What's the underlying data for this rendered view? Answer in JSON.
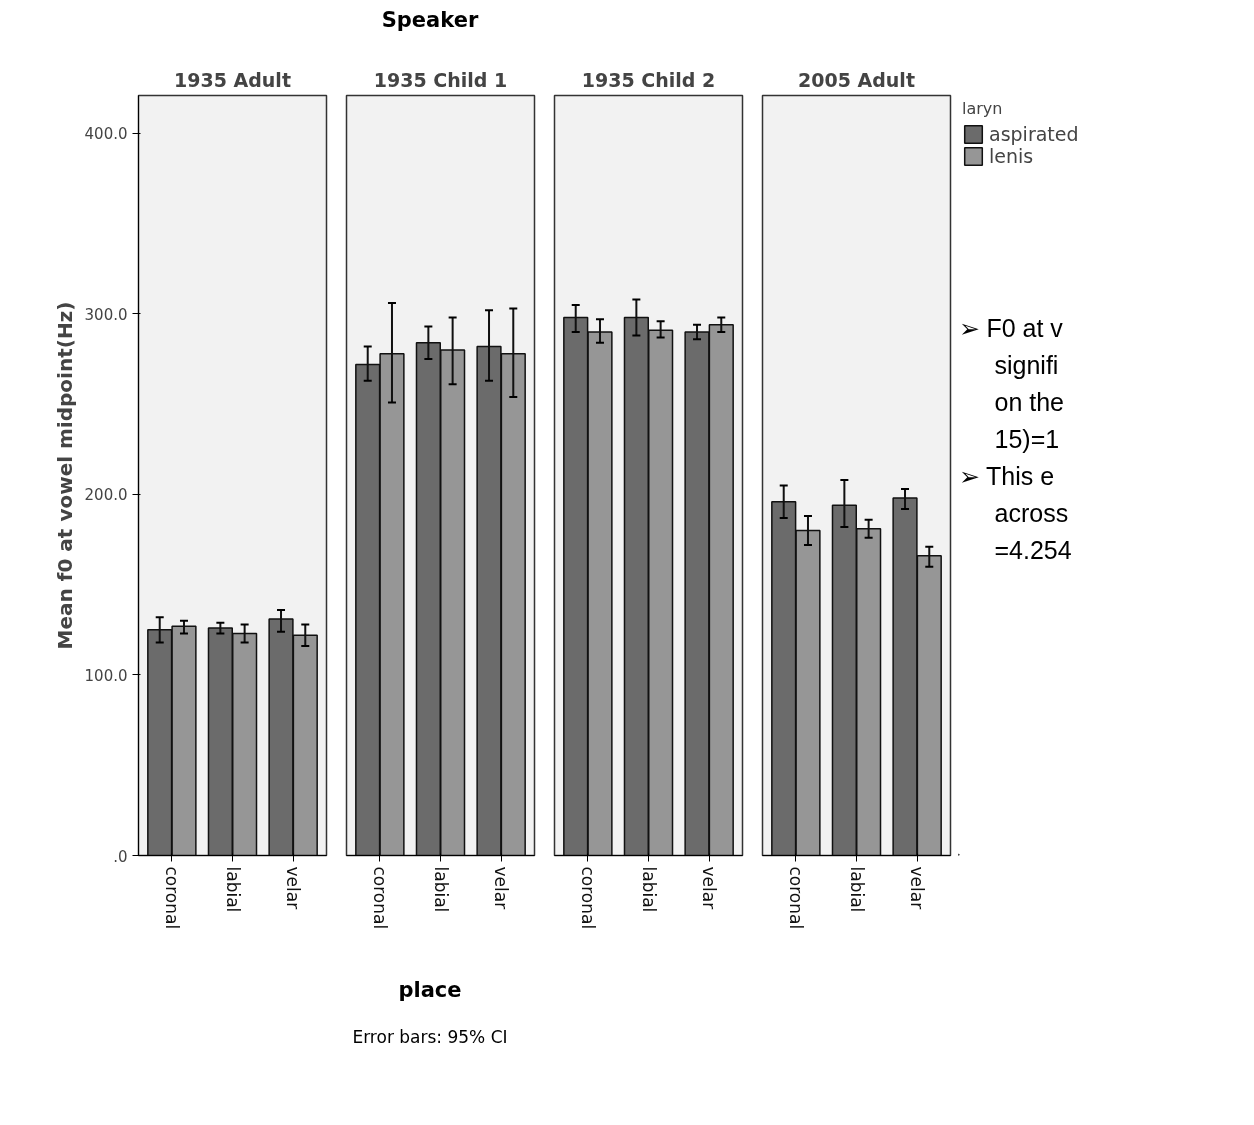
{
  "chart_data": [
    {
      "type": "bar",
      "title": "1935 Adult",
      "ylabel": "Mean f0 at vowel midpoint(Hz)",
      "xlabel": "place",
      "annotations": [
        "Speaker",
        "Error bars: 95% CI"
      ],
      "categories": [
        "coronal",
        "labial",
        "velar"
      ],
      "ylim": [
        0,
        421
      ],
      "yticks": [
        {
          "value": 0,
          "label": ".0"
        },
        {
          "value": 100,
          "label": "100.0"
        },
        {
          "value": 200,
          "label": "200.0"
        },
        {
          "value": 300,
          "label": "300.0"
        },
        {
          "value": 400,
          "label": "400.0"
        }
      ],
      "grid": false,
      "series": [
        {
          "color": "#6b6b6b",
          "values": [
            125,
            126,
            131
          ],
          "errors": [
            [
              118,
              132
            ],
            [
              123,
              129
            ],
            [
              124,
              136
            ]
          ]
        },
        {
          "color": "#969696",
          "values": [
            127,
            123,
            122
          ],
          "errors": [
            [
              123,
              130
            ],
            [
              118,
              128
            ],
            [
              116,
              128
            ]
          ]
        }
      ]
    },
    {
      "type": "bar",
      "title": "1935 Child 1",
      "categories": [
        "coronal",
        "labial",
        "velar"
      ],
      "ylim": [
        0,
        421
      ],
      "tick_labels": "x",
      "grid": false,
      "series": [
        {
          "color": "#6b6b6b",
          "values": [
            272,
            284,
            282
          ],
          "errors": [
            [
              263,
              282
            ],
            [
              275,
              293
            ],
            [
              263,
              302
            ]
          ]
        },
        {
          "color": "#969696",
          "values": [
            278,
            280,
            278
          ],
          "errors": [
            [
              251,
              306
            ],
            [
              261,
              298
            ],
            [
              254,
              303
            ]
          ]
        }
      ]
    },
    {
      "type": "bar",
      "title": "1935 Child 2",
      "categories": [
        "coronal",
        "labial",
        "velar"
      ],
      "ylim": [
        0,
        421
      ],
      "tick_labels": "x",
      "grid": false,
      "series": [
        {
          "color": "#6b6b6b",
          "values": [
            298,
            298,
            290
          ],
          "errors": [
            [
              290,
              305
            ],
            [
              288,
              308
            ],
            [
              286,
              294
            ]
          ]
        },
        {
          "color": "#969696",
          "values": [
            290,
            291,
            294
          ],
          "errors": [
            [
              284,
              297
            ],
            [
              287,
              296
            ],
            [
              290,
              298
            ]
          ]
        }
      ]
    },
    {
      "type": "bar",
      "title": "2005 Adult",
      "categories": [
        "coronal",
        "labial",
        "velar"
      ],
      "ylim": [
        0,
        421
      ],
      "tick_labels": "x",
      "grid": false,
      "legend": "right",
      "legend_title": "laryn",
      "annotations": [
        "➢ F0 at v",
        "signifi",
        "on the",
        "15)=1",
        "➢ This e",
        "across",
        "=4.254"
      ],
      "series": [
        {
          "name": "aspirated",
          "color": "#6b6b6b",
          "values": [
            196,
            194,
            198
          ],
          "errors": [
            [
              187,
              205
            ],
            [
              182,
              208
            ],
            [
              192,
              203
            ]
          ]
        },
        {
          "name": "lenis",
          "color": "#969696",
          "values": [
            180,
            181,
            166
          ],
          "errors": [
            [
              172,
              188
            ],
            [
              176,
              186
            ],
            [
              160,
              171
            ]
          ]
        }
      ]
    }
  ]
}
